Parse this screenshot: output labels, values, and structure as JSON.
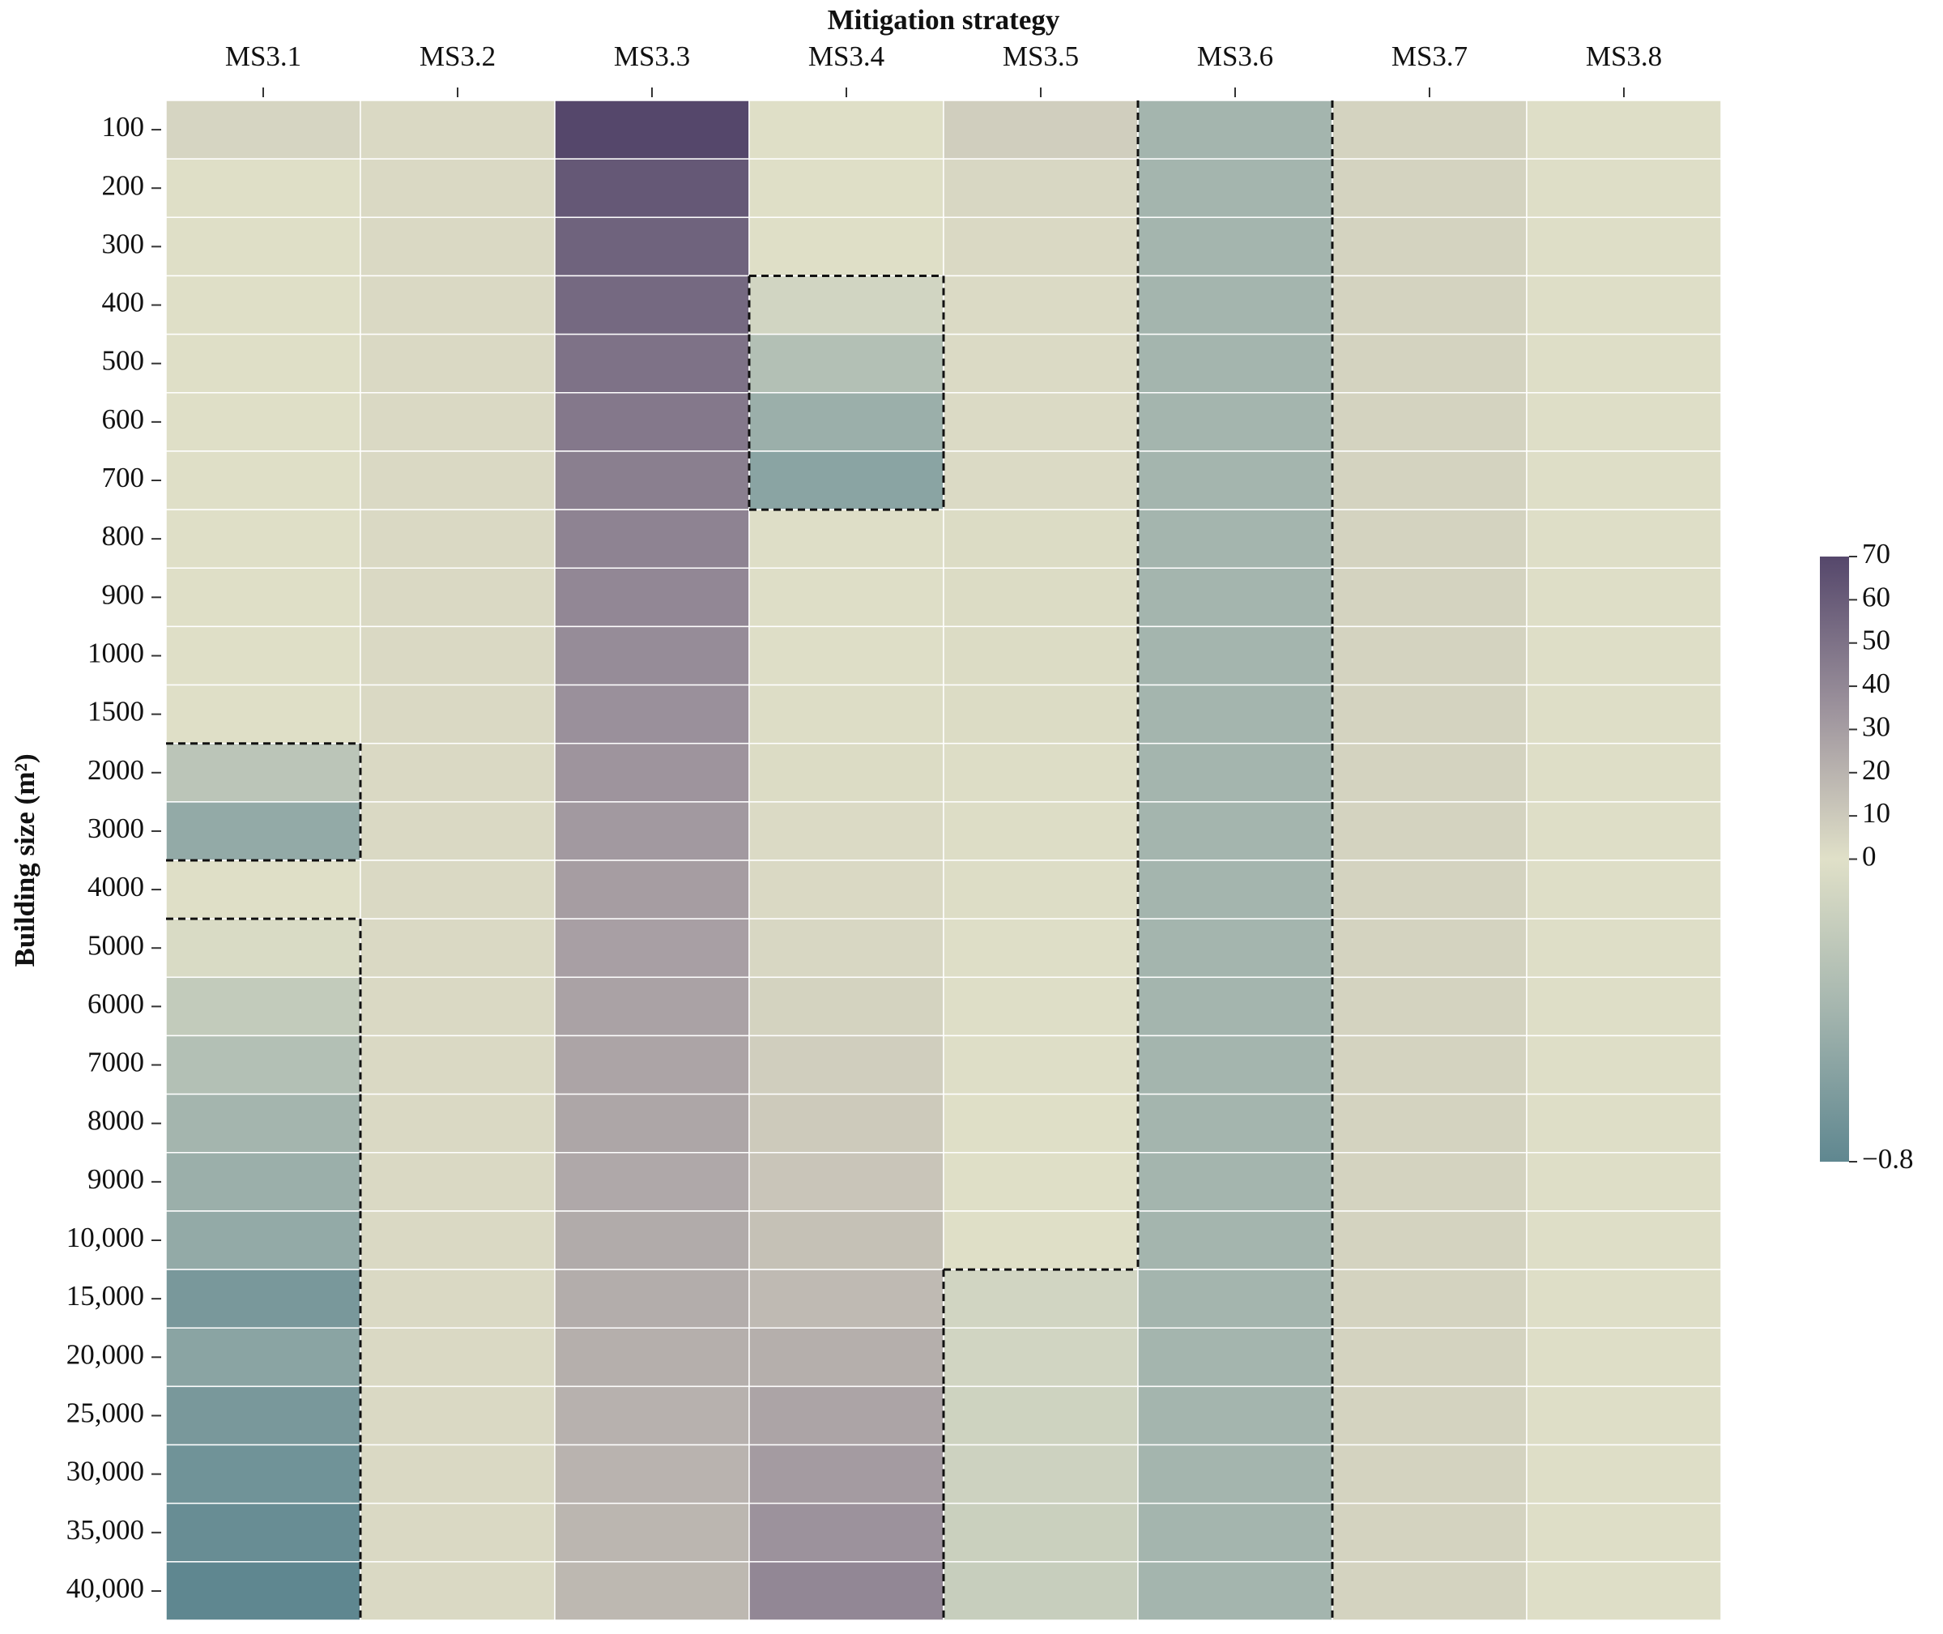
{
  "chart_data": {
    "type": "heatmap",
    "title": "Mitigation strategy",
    "ylabel": "Building size (m²)",
    "x_categories": [
      "MS3.1",
      "MS3.2",
      "MS3.3",
      "MS3.4",
      "MS3.5",
      "MS3.6",
      "MS3.7",
      "MS3.8"
    ],
    "y_categories": [
      "100",
      "200",
      "300",
      "400",
      "500",
      "600",
      "700",
      "800",
      "900",
      "1000",
      "1500",
      "2000",
      "3000",
      "4000",
      "5000",
      "6000",
      "7000",
      "8000",
      "9000",
      "10,000",
      "15,000",
      "20,000",
      "25,000",
      "30,000",
      "35,000",
      "40,000"
    ],
    "values": [
      [
        5,
        3,
        70,
        0.5,
        8,
        -0.4,
        6,
        1
      ],
      [
        0.5,
        3,
        62,
        0.5,
        4,
        -0.4,
        6,
        1
      ],
      [
        0.5,
        3,
        57,
        0.5,
        3,
        -0.4,
        6,
        1
      ],
      [
        0.5,
        3,
        54,
        -0.1,
        2.5,
        -0.4,
        6,
        1
      ],
      [
        0.5,
        3,
        50,
        -0.3,
        2.5,
        -0.4,
        6,
        1
      ],
      [
        0.5,
        3,
        47,
        -0.45,
        2.5,
        -0.4,
        6,
        1
      ],
      [
        0.5,
        3,
        44,
        -0.55,
        2.5,
        -0.4,
        6,
        1
      ],
      [
        0.5,
        3,
        42,
        1,
        2,
        -0.4,
        6,
        1
      ],
      [
        0.5,
        3,
        40,
        1,
        2,
        -0.4,
        6,
        1
      ],
      [
        0.5,
        3,
        38,
        1,
        2,
        -0.4,
        6,
        1
      ],
      [
        0.5,
        3,
        36,
        1.5,
        2,
        -0.4,
        6,
        1
      ],
      [
        -0.25,
        3,
        34,
        2,
        1.5,
        -0.4,
        6,
        1
      ],
      [
        -0.5,
        3,
        32,
        2.5,
        1.5,
        -0.4,
        6,
        1
      ],
      [
        0.5,
        3,
        30,
        3,
        1.5,
        -0.4,
        6,
        1
      ],
      [
        -0.05,
        3,
        29,
        4,
        1,
        -0.4,
        6,
        1
      ],
      [
        -0.2,
        3,
        28,
        6,
        1,
        -0.4,
        6,
        1
      ],
      [
        -0.3,
        3,
        27,
        8,
        1,
        -0.4,
        6,
        1
      ],
      [
        -0.4,
        3,
        26,
        10,
        0.5,
        -0.4,
        6,
        1
      ],
      [
        -0.45,
        3,
        25,
        12,
        0.5,
        -0.4,
        6,
        1
      ],
      [
        -0.5,
        3,
        24,
        14,
        0.5,
        -0.4,
        6,
        1
      ],
      [
        -0.65,
        3,
        23,
        17,
        -0.1,
        -0.4,
        6,
        1
      ],
      [
        -0.55,
        3,
        22,
        22,
        -0.1,
        -0.4,
        6,
        1
      ],
      [
        -0.65,
        3,
        21,
        27,
        -0.12,
        -0.4,
        6,
        1
      ],
      [
        -0.7,
        3,
        20,
        31,
        -0.13,
        -0.4,
        6,
        1
      ],
      [
        -0.75,
        3,
        19,
        35,
        -0.15,
        -0.4,
        6,
        1
      ],
      [
        -0.8,
        3,
        18,
        40,
        -0.17,
        -0.4,
        6,
        1
      ]
    ],
    "colorbar": {
      "lim": [
        -0.8,
        70
      ],
      "center": 0,
      "ticks": [
        {
          "value": -0.8,
          "label": "−0.8"
        },
        0,
        10,
        20,
        30,
        40,
        50,
        60,
        70
      ]
    },
    "cmap": [
      "#5f8790",
      "#a4b5ae",
      "#e0e0c8",
      "#9c929c",
      "#55476b"
    ],
    "outline_sign_change": true
  }
}
